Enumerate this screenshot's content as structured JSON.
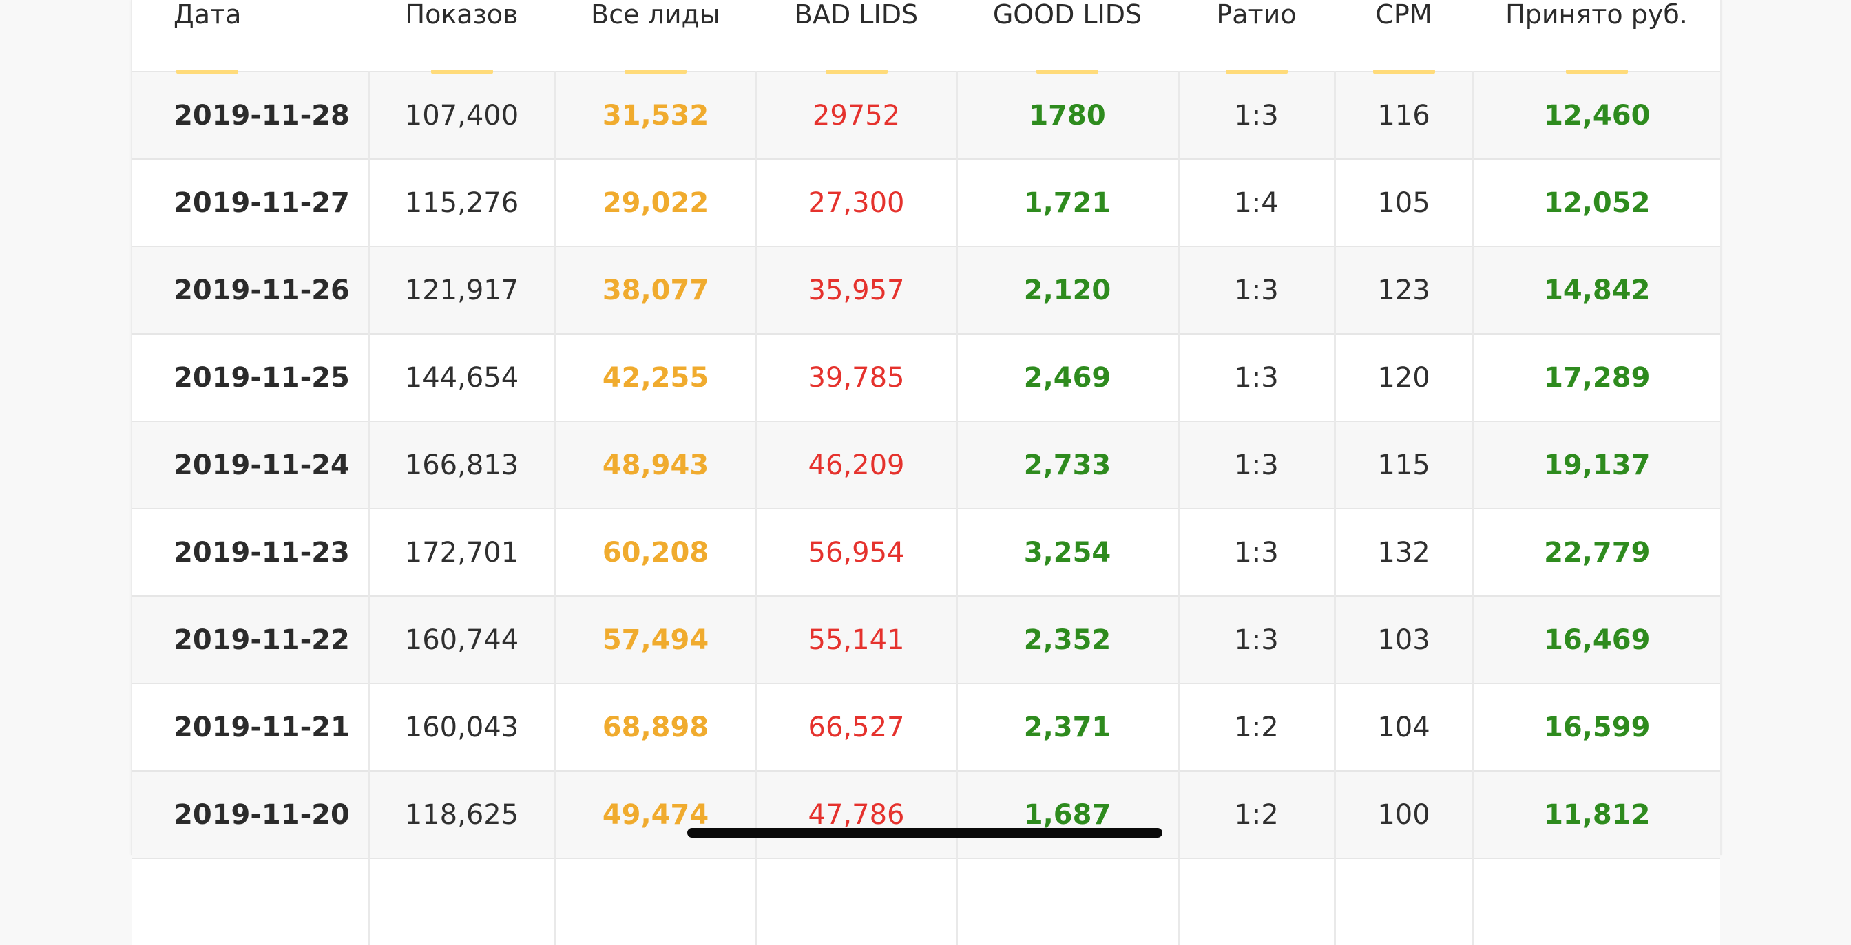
{
  "colors": {
    "all_leads": "#f0ab2e",
    "bad_leads": "#e5322d",
    "good_leads": "#2e8b1e",
    "accepted": "#2e8b1e",
    "header_underline": "#ffdb7a"
  },
  "table": {
    "headers": {
      "date": "Дата",
      "impressions": "Показов",
      "all_leads": "Все лиды",
      "bad_leads": "BAD LIDS",
      "good_leads": "GOOD LIDS",
      "ratio": "Ратио",
      "cpm": "CPM",
      "accepted": "Принято руб."
    },
    "rows": [
      {
        "date": "2019-11-28",
        "impressions": "107,400",
        "all_leads": "31,532",
        "bad_leads": "29752",
        "good_leads": "1780",
        "ratio": "1:3",
        "cpm": "116",
        "accepted": "12,460"
      },
      {
        "date": "2019-11-27",
        "impressions": "115,276",
        "all_leads": "29,022",
        "bad_leads": "27,300",
        "good_leads": "1,721",
        "ratio": "1:4",
        "cpm": "105",
        "accepted": "12,052"
      },
      {
        "date": "2019-11-26",
        "impressions": "121,917",
        "all_leads": "38,077",
        "bad_leads": "35,957",
        "good_leads": "2,120",
        "ratio": "1:3",
        "cpm": "123",
        "accepted": "14,842"
      },
      {
        "date": "2019-11-25",
        "impressions": "144,654",
        "all_leads": "42,255",
        "bad_leads": "39,785",
        "good_leads": "2,469",
        "ratio": "1:3",
        "cpm": "120",
        "accepted": "17,289"
      },
      {
        "date": "2019-11-24",
        "impressions": "166,813",
        "all_leads": "48,943",
        "bad_leads": "46,209",
        "good_leads": "2,733",
        "ratio": "1:3",
        "cpm": "115",
        "accepted": "19,137"
      },
      {
        "date": "2019-11-23",
        "impressions": "172,701",
        "all_leads": "60,208",
        "bad_leads": "56,954",
        "good_leads": "3,254",
        "ratio": "1:3",
        "cpm": "132",
        "accepted": "22,779"
      },
      {
        "date": "2019-11-22",
        "impressions": "160,744",
        "all_leads": "57,494",
        "bad_leads": "55,141",
        "good_leads": "2,352",
        "ratio": "1:3",
        "cpm": "103",
        "accepted": "16,469"
      },
      {
        "date": "2019-11-21",
        "impressions": "160,043",
        "all_leads": "68,898",
        "bad_leads": "66,527",
        "good_leads": "2,371",
        "ratio": "1:2",
        "cpm": "104",
        "accepted": "16,599"
      },
      {
        "date": "2019-11-20",
        "impressions": "118,625",
        "all_leads": "49,474",
        "bad_leads": "47,786",
        "good_leads": "1,687",
        "ratio": "1:2",
        "cpm": "100",
        "accepted": "11,812"
      }
    ]
  }
}
